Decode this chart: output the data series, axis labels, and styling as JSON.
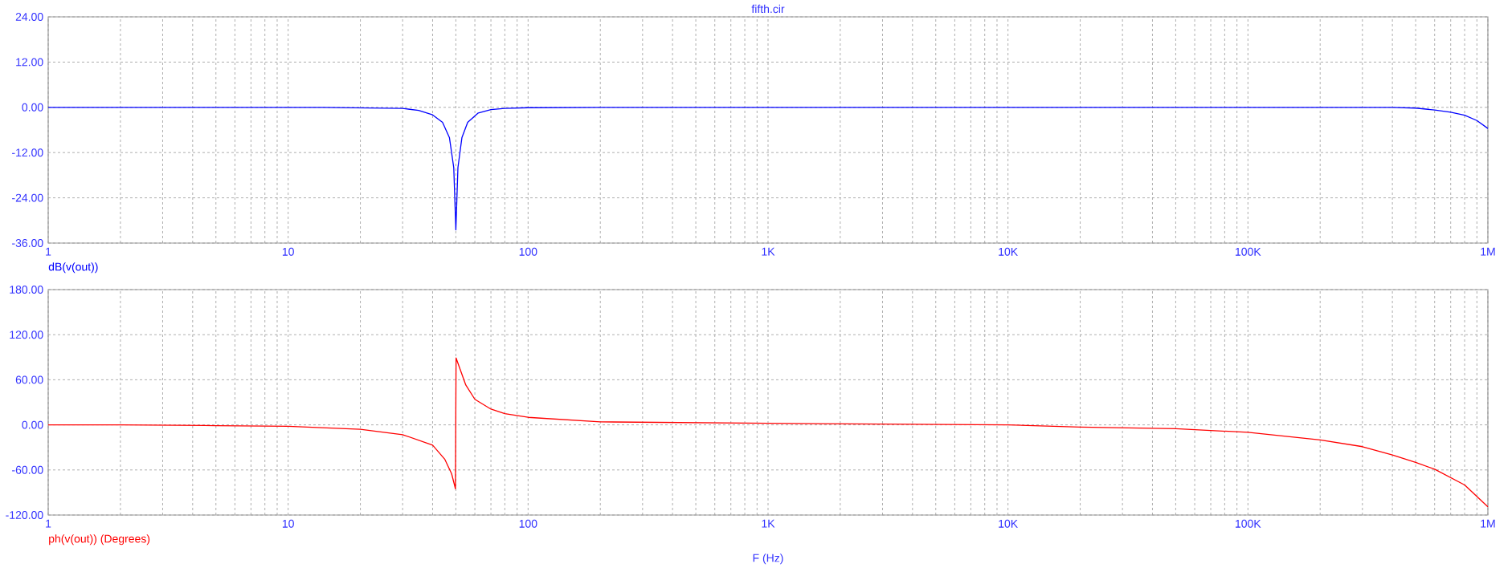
{
  "chart_data": [
    {
      "type": "line",
      "title": "fifth.cir",
      "log": "x",
      "grid": true,
      "xlim": [
        1,
        1000000
      ],
      "xticks": [
        1,
        10,
        100,
        {
          "value": 1000,
          "label": "1K"
        },
        {
          "value": 10000,
          "label": "10K"
        },
        {
          "value": 100000,
          "label": "100K"
        },
        {
          "value": 1000000,
          "label": "1M"
        }
      ],
      "ylim": [
        -36,
        24
      ],
      "yticks": [
        {
          "value": -36,
          "label": "-36.00"
        },
        {
          "value": -24,
          "label": "-24.00"
        },
        {
          "value": -12,
          "label": "-12.00"
        },
        {
          "value": 0,
          "label": "0.00"
        },
        {
          "value": 12,
          "label": "12.00"
        },
        {
          "value": 24,
          "label": "24.00"
        }
      ],
      "x": [
        1,
        14,
        30,
        35,
        40,
        44,
        47,
        49,
        50,
        51,
        53,
        56,
        62,
        70,
        80,
        100,
        200,
        1000,
        100000,
        400000,
        500000,
        600000,
        700000,
        800000,
        900000,
        1000000
      ],
      "series": [
        {
          "name": "dB(v(out))",
          "color": "#0000ff",
          "values": [
            0,
            0,
            -0.3,
            -0.8,
            -2,
            -4,
            -8,
            -16,
            -32.5,
            -16,
            -8,
            -4,
            -1.5,
            -0.6,
            -0.3,
            -0.1,
            0,
            0,
            0,
            0,
            -0.2,
            -0.7,
            -1.3,
            -2.1,
            -3.5,
            -5.6
          ]
        }
      ]
    },
    {
      "type": "line",
      "xlabel": "F (Hz)",
      "log": "x",
      "grid": true,
      "xlim": [
        1,
        1000000
      ],
      "xticks": [
        1,
        10,
        100,
        {
          "value": 1000,
          "label": "1K"
        },
        {
          "value": 10000,
          "label": "10K"
        },
        {
          "value": 100000,
          "label": "100K"
        },
        {
          "value": 1000000,
          "label": "1M"
        }
      ],
      "ylim": [
        -120,
        180
      ],
      "yticks": [
        {
          "value": -120,
          "label": "-120.00"
        },
        {
          "value": -60,
          "label": "-60.00"
        },
        {
          "value": 0,
          "label": "0.00"
        },
        {
          "value": 60,
          "label": "60.00"
        },
        {
          "value": 120,
          "label": "120.00"
        },
        {
          "value": 180,
          "label": "180.00"
        }
      ],
      "x": [
        1,
        2,
        5,
        10,
        20,
        30,
        40,
        45,
        48,
        49.8,
        50.1,
        55,
        60,
        70,
        80,
        100,
        200,
        1000,
        10000,
        20000,
        50000,
        100000,
        200000,
        300000,
        400000,
        500000,
        600000,
        800000,
        1000000
      ],
      "series": [
        {
          "name": "ph(v(out)) (Degrees)",
          "color": "#ff0000",
          "values": [
            0,
            0,
            -1,
            -2,
            -6,
            -13,
            -27,
            -46,
            -65,
            -85,
            89,
            53,
            34,
            21,
            15,
            10,
            4,
            2,
            0,
            -3,
            -5,
            -10,
            -20,
            -29,
            -40,
            -50,
            -59,
            -80,
            -109
          ]
        }
      ]
    }
  ]
}
